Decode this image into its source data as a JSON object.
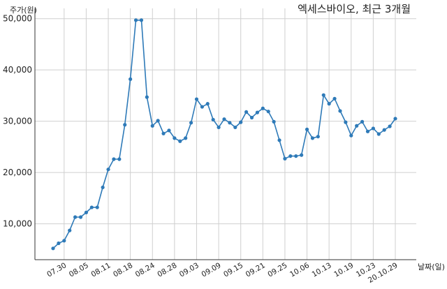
{
  "chart_data": {
    "type": "line",
    "title": "엑세스바이오, 최근 3개월",
    "ylabel": "주가(원)",
    "xlabel": "날짜(일)",
    "ylim": [
      3000,
      52000
    ],
    "yticks": [
      10000,
      20000,
      30000,
      40000,
      50000
    ],
    "ytick_labels": [
      "10,000",
      "20,000",
      "30,000",
      "40,000",
      "50,000"
    ],
    "grid": true,
    "series_color": "#2e7ab8",
    "xtick_indices": [
      2,
      6,
      10,
      14,
      18,
      22,
      26,
      30,
      34,
      38,
      42,
      46,
      50,
      54,
      58,
      62
    ],
    "xtick_labels": [
      "07.30",
      "08.05",
      "08.11",
      "08.18",
      "08.24",
      "08.28",
      "09.03",
      "09.09",
      "09.15",
      "09.21",
      "09.25",
      "10.06",
      "10.13",
      "10.19",
      "10.23",
      "20.10.29"
    ],
    "series": [
      {
        "values": [
          5200,
          6200,
          6700,
          8700,
          11300,
          11300,
          12200,
          13200,
          13200,
          17100,
          20600,
          22600,
          22600,
          29300,
          38200,
          49700,
          49700,
          34700,
          29100,
          30100,
          27600,
          28200,
          26700,
          26100,
          26700,
          29700,
          34300,
          32800,
          33400,
          30300,
          28800,
          30400,
          29700,
          28800,
          29800,
          31800,
          30700,
          31700,
          32500,
          31900,
          29900,
          26300,
          22700,
          23200,
          23200,
          23400,
          28400,
          26700,
          27000,
          35100,
          33400,
          34400,
          32000,
          29800,
          27200,
          29100,
          29900,
          28000,
          28600,
          27500,
          28300,
          29000,
          30500
        ]
      }
    ]
  }
}
